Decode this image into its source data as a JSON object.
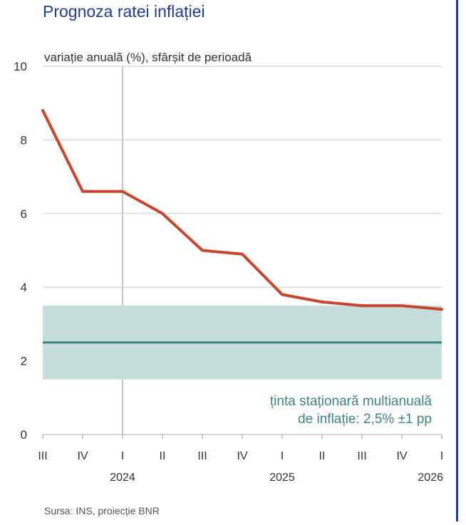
{
  "page": {
    "title": "Prognoza ratei inflației",
    "subtitle": "variație anuală (%), sfârșit de perioadă",
    "source": "Sursa: INS, proiecție BNR",
    "colors": {
      "title": "#1f3d99",
      "accent_rule": "#1f3d99",
      "series_line": "#c9462c",
      "target_line": "#3a8582",
      "band_fill": "#c5dedb",
      "grid": "#c8c8c8",
      "text": "#333333"
    }
  },
  "chart_data": {
    "type": "line",
    "title": "Prognoza ratei inflației",
    "subtitle": "variație anuală (%), sfârșit de perioadă",
    "x_tick_labels": [
      "III",
      "IV",
      "I",
      "II",
      "III",
      "IV",
      "I",
      "II",
      "III",
      "IV",
      "I"
    ],
    "year_labels": [
      {
        "label": "2024",
        "index": 2
      },
      {
        "label": "2025",
        "index": 6
      },
      {
        "label": "2026",
        "index": 10
      }
    ],
    "y_ticks": [
      0,
      2,
      4,
      6,
      8,
      10
    ],
    "ylim": [
      0,
      10
    ],
    "grid": true,
    "series": [
      {
        "values": [
          8.8,
          6.6,
          6.6,
          6.0,
          5.0,
          4.9,
          3.8,
          3.6,
          3.5,
          3.5,
          3.4
        ]
      }
    ],
    "target": {
      "value": 2.5,
      "band": [
        1.5,
        3.5
      ]
    },
    "annotation": [
      "ținta staționară multianuală",
      "de inflație: 2,5% ±1 pp"
    ],
    "vertical_marker_index": 2,
    "source": "Sursa: INS, proiecție BNR"
  }
}
